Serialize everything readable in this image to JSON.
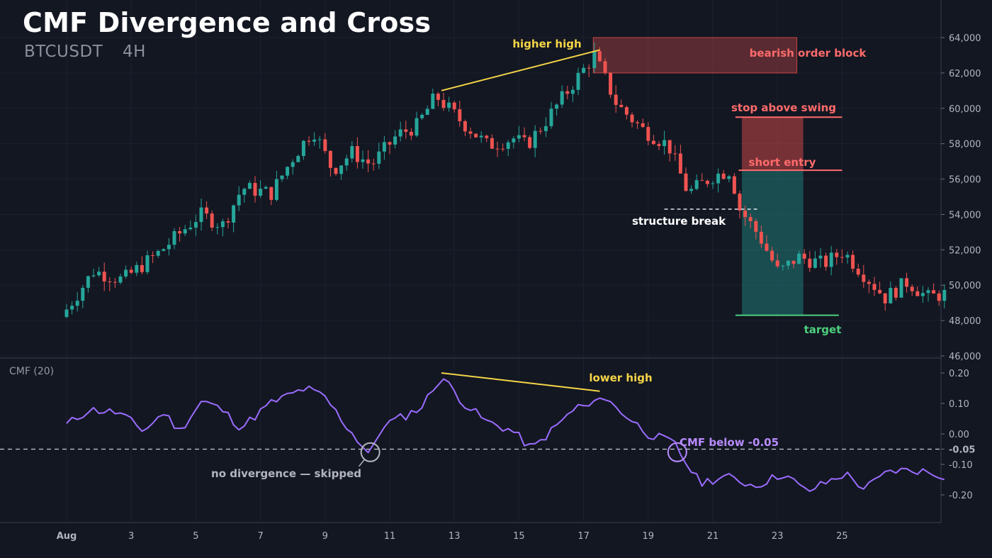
{
  "title": "CMF Divergence and Cross",
  "subtitle": {
    "symbol": "BTCUSDT",
    "interval": "4H"
  },
  "indicator_label": "CMF (20)",
  "colors": {
    "background": "#131722",
    "bull": "#26a69a",
    "bear": "#ef5350",
    "cmf_line": "#9b6cff",
    "annotation_yellow": "#f5d547",
    "annotation_red": "#ff6b6b",
    "annotation_green": "#4cd07d",
    "annotation_white": "#ffffff",
    "annotation_purple": "#b98cff",
    "annotation_gray": "#b2b5be"
  },
  "annotations": {
    "higher_high": "higher high",
    "bearish_order_block": "bearish order block",
    "stop_above_swing": "stop above swing",
    "short_entry": "short entry",
    "structure_break": "structure break",
    "target": "target",
    "lower_high": "lower high",
    "cmf_below": "CMF below -0.05",
    "no_divergence": "no divergence — skipped"
  },
  "chart_data": [
    {
      "type": "candlestick",
      "title": "CMF Divergence and Cross",
      "symbol": "BTCUSDT",
      "interval": "4H",
      "x_axis": {
        "type": "time",
        "ticks": [
          "Aug",
          "3",
          "5",
          "7",
          "9",
          "11",
          "13",
          "15",
          "17",
          "19",
          "21",
          "23",
          "25"
        ],
        "range_days": [
          1,
          30
        ]
      },
      "y_axis": {
        "side": "right",
        "ylim": [
          46000,
          64500
        ],
        "ticks": [
          46000,
          48000,
          50000,
          52000,
          54000,
          56000,
          58000,
          60000,
          62000,
          64000
        ],
        "tick_labels": [
          "46,000",
          "48,000",
          "50,000",
          "52,000",
          "54,000",
          "56,000",
          "58,000",
          "60,000",
          "62,000",
          "64,000"
        ]
      },
      "price_path": [
        {
          "day": 1.0,
          "price": 48200
        },
        {
          "day": 2.0,
          "price": 50800
        },
        {
          "day": 2.9,
          "price": 50300
        },
        {
          "day": 4.0,
          "price": 51800
        },
        {
          "day": 5.3,
          "price": 54000
        },
        {
          "day": 6.0,
          "price": 53400
        },
        {
          "day": 6.6,
          "price": 55500
        },
        {
          "day": 7.5,
          "price": 55200
        },
        {
          "day": 8.2,
          "price": 57300
        },
        {
          "day": 8.8,
          "price": 58800
        },
        {
          "day": 9.4,
          "price": 56500
        },
        {
          "day": 10.0,
          "price": 57500
        },
        {
          "day": 10.6,
          "price": 56800
        },
        {
          "day": 11.4,
          "price": 58500
        },
        {
          "day": 12.0,
          "price": 59000
        },
        {
          "day": 12.6,
          "price": 60700
        },
        {
          "day": 13.3,
          "price": 59400
        },
        {
          "day": 14.2,
          "price": 57900
        },
        {
          "day": 15.0,
          "price": 58300
        },
        {
          "day": 15.4,
          "price": 57900
        },
        {
          "day": 16.0,
          "price": 59300
        },
        {
          "day": 16.8,
          "price": 61300
        },
        {
          "day": 17.5,
          "price": 63000
        },
        {
          "day": 18.2,
          "price": 60200
        },
        {
          "day": 19.0,
          "price": 58800
        },
        {
          "day": 19.8,
          "price": 57900
        },
        {
          "day": 20.4,
          "price": 55200
        },
        {
          "day": 21.2,
          "price": 56200
        },
        {
          "day": 21.7,
          "price": 56500
        },
        {
          "day": 22.0,
          "price": 54300
        },
        {
          "day": 22.6,
          "price": 52800
        },
        {
          "day": 23.2,
          "price": 50700
        },
        {
          "day": 23.8,
          "price": 51600
        },
        {
          "day": 24.6,
          "price": 51200
        },
        {
          "day": 25.2,
          "price": 51900
        },
        {
          "day": 25.8,
          "price": 50700
        },
        {
          "day": 26.5,
          "price": 49300
        },
        {
          "day": 27.2,
          "price": 50200
        },
        {
          "day": 27.8,
          "price": 49300
        },
        {
          "day": 28.3,
          "price": 49500
        }
      ],
      "levels": {
        "order_block": {
          "day_start": 17.3,
          "day_end": 23.6,
          "low": 62000,
          "high": 64000
        },
        "stop": 59500,
        "entry": 56500,
        "target": 48300,
        "structure_break": 54300,
        "trade_zone_days": [
          21.9,
          23.8
        ]
      },
      "higher_high_line": {
        "from": {
          "day": 12.6,
          "price": 61000
        },
        "to": {
          "day": 17.5,
          "price": 63300
        }
      }
    },
    {
      "type": "line",
      "series": [
        {
          "name": "CMF (20)",
          "color": "#9b6cff"
        }
      ],
      "y_axis": {
        "side": "right",
        "ylim": [
          -0.25,
          0.23
        ],
        "ticks": [
          0.2,
          0.1,
          0.0,
          -0.05,
          -0.1,
          -0.2
        ],
        "tick_labels": [
          "0.20",
          "0.10",
          "0.00",
          "-0.05",
          "-0.10",
          "-0.20"
        ]
      },
      "threshold": -0.05,
      "path": [
        {
          "day": 1.0,
          "value": 0.03
        },
        {
          "day": 1.7,
          "value": 0.08
        },
        {
          "day": 2.6,
          "value": 0.07
        },
        {
          "day": 3.4,
          "value": 0.01
        },
        {
          "day": 4.0,
          "value": 0.07
        },
        {
          "day": 4.5,
          "value": 0.01
        },
        {
          "day": 5.2,
          "value": 0.11
        },
        {
          "day": 5.8,
          "value": 0.08
        },
        {
          "day": 6.4,
          "value": 0.02
        },
        {
          "day": 7.3,
          "value": 0.1
        },
        {
          "day": 8.4,
          "value": 0.15
        },
        {
          "day": 9.0,
          "value": 0.12
        },
        {
          "day": 9.7,
          "value": 0.02
        },
        {
          "day": 10.4,
          "value": -0.07
        },
        {
          "day": 10.8,
          "value": 0.03
        },
        {
          "day": 11.5,
          "value": 0.06
        },
        {
          "day": 12.0,
          "value": 0.09
        },
        {
          "day": 12.6,
          "value": 0.19
        },
        {
          "day": 13.3,
          "value": 0.1
        },
        {
          "day": 14.0,
          "value": 0.04
        },
        {
          "day": 14.8,
          "value": 0.01
        },
        {
          "day": 15.4,
          "value": -0.05
        },
        {
          "day": 16.1,
          "value": 0.02
        },
        {
          "day": 16.8,
          "value": 0.09
        },
        {
          "day": 17.3,
          "value": 0.09
        },
        {
          "day": 17.5,
          "value": 0.13
        },
        {
          "day": 18.2,
          "value": 0.07
        },
        {
          "day": 19.0,
          "value": 0.0
        },
        {
          "day": 19.8,
          "value": -0.03
        },
        {
          "day": 20.2,
          "value": -0.1
        },
        {
          "day": 20.6,
          "value": -0.16
        },
        {
          "day": 21.4,
          "value": -0.14
        },
        {
          "day": 22.3,
          "value": -0.17
        },
        {
          "day": 23.2,
          "value": -0.13
        },
        {
          "day": 23.9,
          "value": -0.19
        },
        {
          "day": 24.5,
          "value": -0.16
        },
        {
          "day": 25.1,
          "value": -0.13
        },
        {
          "day": 25.7,
          "value": -0.18
        },
        {
          "day": 26.5,
          "value": -0.12
        },
        {
          "day": 27.4,
          "value": -0.12
        },
        {
          "day": 28.3,
          "value": -0.14
        }
      ],
      "higher_high_div": {
        "from": {
          "day": 12.6,
          "value": 0.2
        },
        "to": {
          "day": 17.5,
          "value": 0.14
        }
      },
      "markers": [
        {
          "label": "no divergence — skipped",
          "day": 10.4,
          "value": -0.06,
          "color": "#b2b5be"
        },
        {
          "label": "CMF below -0.05",
          "day": 19.9,
          "value": -0.06,
          "color": "#b98cff"
        }
      ]
    }
  ]
}
